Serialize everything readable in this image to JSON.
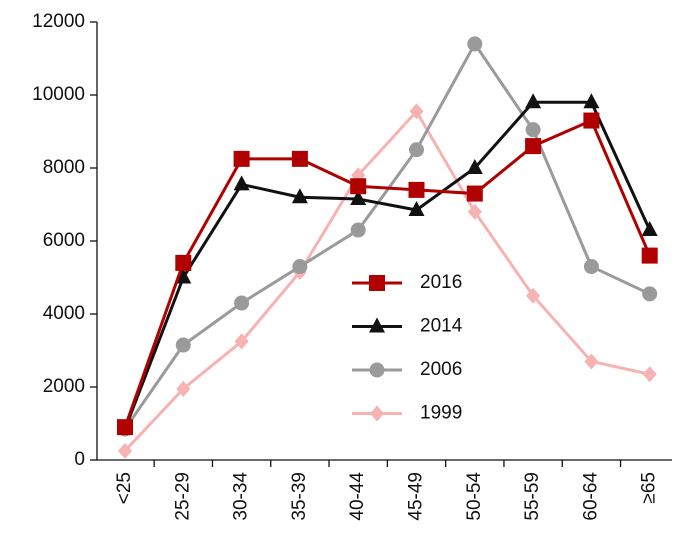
{
  "chart_data": {
    "type": "line",
    "categories": [
      "<25",
      "25-29",
      "30-34",
      "35-39",
      "40-44",
      "45-49",
      "50-54",
      "55-59",
      "60-64",
      "≥65"
    ],
    "series": [
      {
        "name": "2016",
        "color": "#b00000",
        "marker": "square",
        "values": [
          900,
          5400,
          8250,
          8250,
          7500,
          7400,
          7300,
          8600,
          9300,
          5600
        ]
      },
      {
        "name": "2014",
        "color": "#111111",
        "marker": "triangle",
        "values": [
          850,
          5000,
          7550,
          7200,
          7150,
          6850,
          8000,
          9800,
          9800,
          6300
        ]
      },
      {
        "name": "2006",
        "color": "#9a9a9a",
        "marker": "circle",
        "values": [
          850,
          3150,
          4300,
          5300,
          6300,
          8500,
          11400,
          9050,
          5300,
          4550
        ]
      },
      {
        "name": "1999",
        "color": "#f7b2b2",
        "marker": "diamond",
        "values": [
          250,
          1950,
          3250,
          5150,
          7800,
          9550,
          6800,
          4500,
          2700,
          2350
        ]
      }
    ],
    "ylim": [
      0,
      12000
    ],
    "yticks": [
      0,
      2000,
      4000,
      6000,
      8000,
      10000,
      12000
    ],
    "grid": false
  }
}
